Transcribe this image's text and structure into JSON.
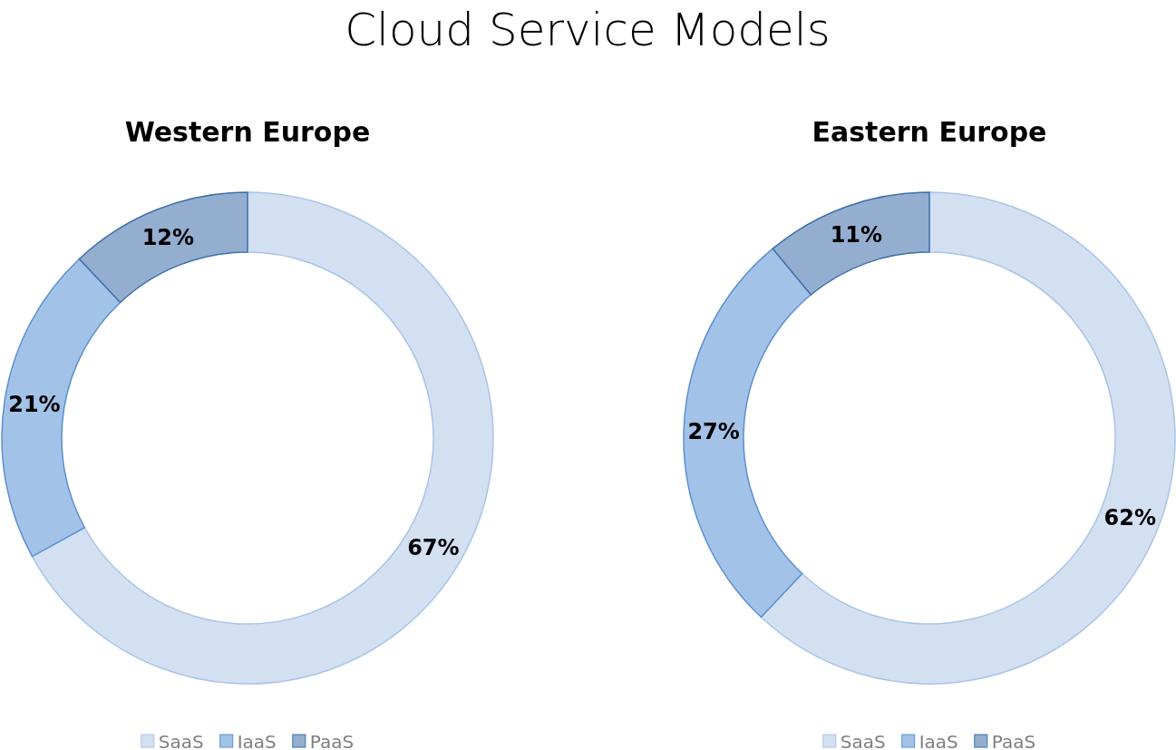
{
  "chart_data": [
    {
      "type": "donut",
      "title": "Cloud Service Models",
      "subtitle": "Western Europe",
      "categories": [
        "SaaS",
        "IaaS",
        "PaaS"
      ],
      "values": [
        67,
        21,
        12
      ],
      "value_labels": [
        "67%",
        "21%",
        "12%"
      ],
      "colors": [
        "#d2e0f2",
        "#a3c2e8",
        "#94aed0"
      ],
      "legend": "bottom"
    },
    {
      "type": "donut",
      "subtitle": "Eastern Europe",
      "categories": [
        "SaaS",
        "IaaS",
        "PaaS"
      ],
      "values": [
        62,
        27,
        11
      ],
      "value_labels": [
        "62%",
        "27%",
        "11%"
      ],
      "colors": [
        "#d2e0f2",
        "#a3c2e8",
        "#94aed0"
      ],
      "legend": "bottom"
    }
  ]
}
